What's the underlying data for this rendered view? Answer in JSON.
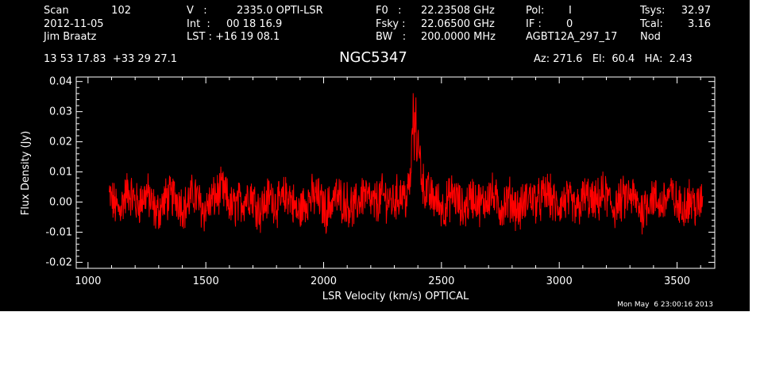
{
  "header": {
    "scan_label": "Scan",
    "scan_number": "102",
    "date": "2012-11-05",
    "observer": "Jim Braatz",
    "velocity_label": "V   :",
    "velocity_value": "2335.0 OPTI-LSR",
    "int_label": "Int  :",
    "int_value": "00 18 16.9",
    "lst": "LST : +16 19 08.1",
    "f0_label": "F0   :",
    "f0_value": "22.23508 GHz",
    "fsky_label": "Fsky :",
    "fsky_value": "22.06500 GHz",
    "bw_label": "BW   :",
    "bw_value": "200.0000 MHz",
    "pol_label": "Pol:",
    "pol_value": "I",
    "if_label": "IF :",
    "if_value": "0",
    "project": "AGBT12A_297_17",
    "tsys_label": "Tsys:",
    "tsys_value": "32.97",
    "tcal_label": "Tcal:",
    "tcal_value": "3.16",
    "mode": "Nod",
    "coords": "13 53 17.83  +33 29 27.1",
    "source": "NGC5347",
    "az_el_ha": "Az: 271.6   El:  60.4   HA:  2.43"
  },
  "footer": {
    "timestamp": "Mon May  6 23:00:16 2013"
  },
  "colors": {
    "background": "#000000",
    "axes": "#ffffff",
    "trace": "#ff0000"
  },
  "chart_data": {
    "type": "line",
    "title": "NGC5347",
    "xlabel": "LSR Velocity (km/s) OPTICAL",
    "ylabel": "Flux Density (Jy)",
    "xlim": [
      950,
      3660
    ],
    "ylim": [
      -0.022,
      0.0415
    ],
    "x_ticks": [
      1000,
      1500,
      2000,
      2500,
      3000,
      3500
    ],
    "x_tick_labels": [
      "1000",
      "1500",
      "2000",
      "2500",
      "3000",
      "3500"
    ],
    "y_ticks": [
      -0.02,
      -0.01,
      0.0,
      0.01,
      0.02,
      0.03,
      0.04
    ],
    "y_tick_labels": [
      "-0.02",
      "-0.01",
      "0.00",
      "0.01",
      "0.02",
      "0.03",
      "0.04"
    ],
    "grid": false,
    "series": [
      {
        "color": "#ff0000",
        "x": [
          1090,
          1130,
          1170,
          1210,
          1250,
          1290,
          1330,
          1370,
          1410,
          1450,
          1490,
          1530,
          1570,
          1610,
          1650,
          1690,
          1730,
          1770,
          1810,
          1850,
          1890,
          1930,
          1970,
          2010,
          2050,
          2090,
          2130,
          2170,
          2210,
          2250,
          2290,
          2330,
          2350,
          2360,
          2370,
          2375,
          2380,
          2385,
          2390,
          2395,
          2400,
          2405,
          2410,
          2415,
          2420,
          2430,
          2440,
          2450,
          2470,
          2510,
          2550,
          2590,
          2630,
          2670,
          2710,
          2750,
          2790,
          2830,
          2870,
          2910,
          2950,
          2990,
          3030,
          3070,
          3110,
          3150,
          3190,
          3230,
          3270,
          3310,
          3350,
          3390,
          3430,
          3470,
          3510,
          3550,
          3590,
          3610
        ],
        "y": [
          0.002,
          -0.003,
          0.004,
          -0.001,
          0.003,
          -0.004,
          0.001,
          0.002,
          -0.002,
          0.003,
          -0.003,
          0.001,
          0.004,
          -0.002,
          0.0,
          0.003,
          -0.003,
          0.002,
          -0.001,
          0.003,
          -0.004,
          0.001,
          0.002,
          -0.003,
          0.002,
          0.0,
          -0.002,
          0.003,
          -0.001,
          0.002,
          0.0,
          0.003,
          0.001,
          0.004,
          0.008,
          0.021,
          0.03,
          0.018,
          0.033,
          0.015,
          0.026,
          0.012,
          0.016,
          0.009,
          0.007,
          0.004,
          0.003,
          0.002,
          0.001,
          -0.002,
          0.003,
          -0.003,
          0.002,
          -0.001,
          0.003,
          -0.002,
          0.001,
          -0.003,
          0.002,
          0.0,
          0.003,
          -0.002,
          0.001,
          -0.003,
          0.002,
          -0.001,
          0.003,
          -0.002,
          0.001,
          0.002,
          -0.003,
          0.002,
          -0.001,
          0.003,
          -0.002,
          0.001,
          -0.002,
          0.002
        ]
      }
    ]
  }
}
